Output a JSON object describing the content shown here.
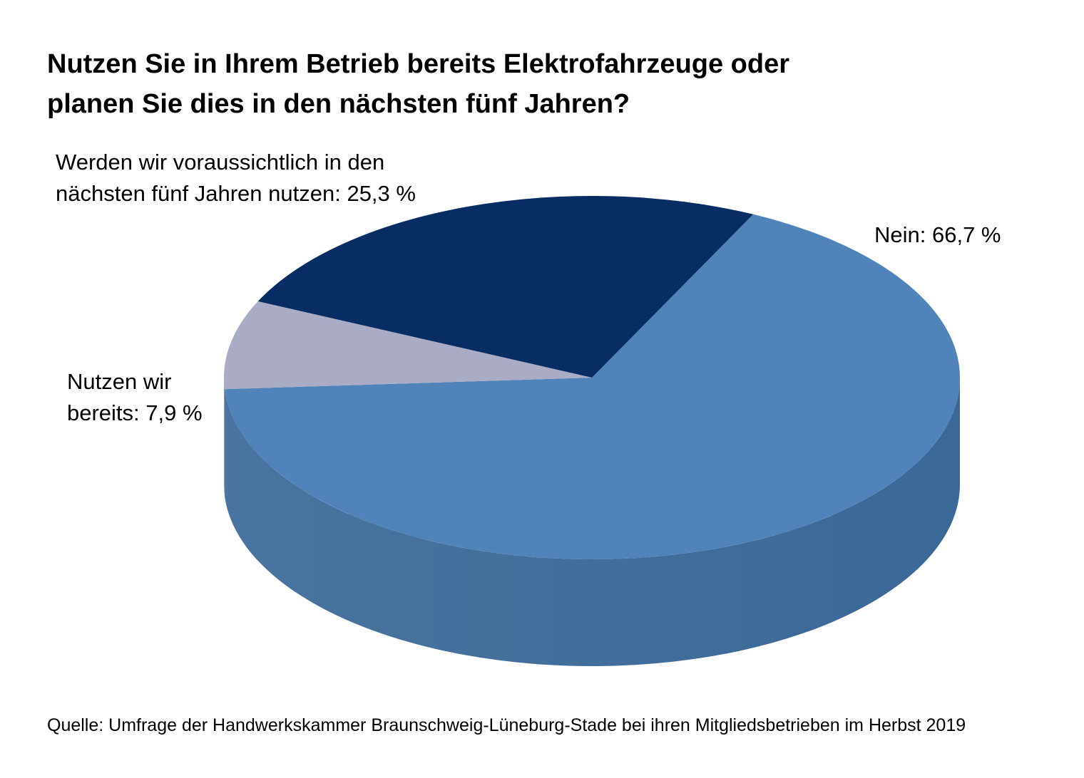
{
  "chart_data": {
    "type": "pie",
    "title_lines": [
      "Nutzen Sie in Ihrem Betrieb bereits Elektrofahrzeuge oder",
      "planen Sie dies in den nächsten fünf Jahren?"
    ],
    "slices": [
      {
        "label_lines": [
          "Nein: 66,7 %"
        ],
        "value": 66.7,
        "color": "#4F83BA",
        "side_color": "#3A6897"
      },
      {
        "label_lines": [
          "Nutzen wir",
          "bereits: 7,9 %"
        ],
        "value": 7.9,
        "color": "#A9ACC4",
        "side_color": "#8A8DA3"
      },
      {
        "label_lines": [
          "Werden wir voraussichtlich in den",
          "nächsten fünf Jahren nutzen: 25,3 %"
        ],
        "value": 25.3,
        "color": "#082C64",
        "side_color": "#061F47"
      }
    ],
    "style": "3d-pie",
    "source": "Quelle: Umfrage der Handwerkskammer Braunschweig-Lüneburg-Stade bei ihren Mitgliedsbetrieben im Herbst 2019"
  }
}
